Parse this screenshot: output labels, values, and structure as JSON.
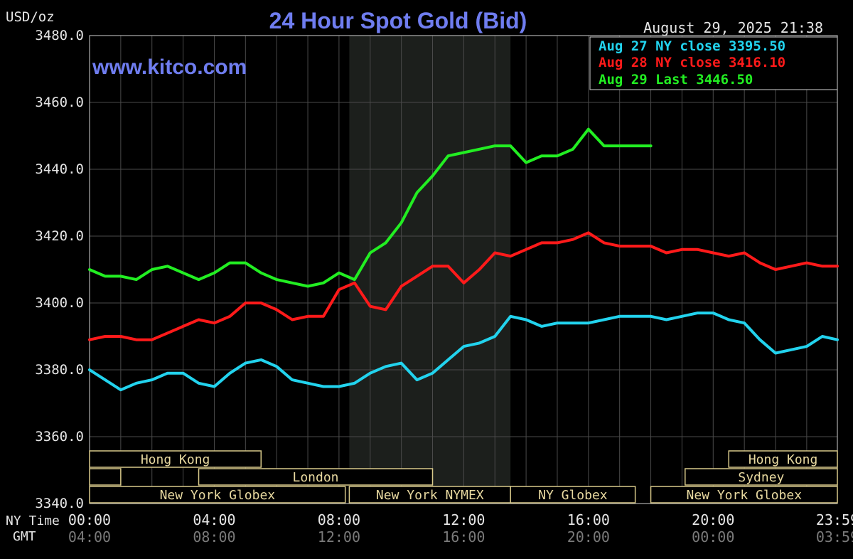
{
  "chart_data": {
    "type": "line",
    "title": "24 Hour Spot Gold (Bid)",
    "unit_label": "USD/oz",
    "timestamp": "August 29, 2025 21:38",
    "watermark": "www.kitco.com",
    "ylim": [
      3340,
      3480
    ],
    "y_ticks": [
      "3480.0",
      "3460.0",
      "3440.0",
      "3420.0",
      "3400.0",
      "3380.0",
      "3360.0",
      "3340.0"
    ],
    "y_tick_values": [
      3480,
      3460,
      3440,
      3420,
      3400,
      3380,
      3360,
      3340
    ],
    "x_axis_label": "NY Time",
    "x_axis_label2": "GMT",
    "x_ticks_ny": [
      "00:00",
      "04:00",
      "08:00",
      "12:00",
      "16:00",
      "20:00",
      "23:59"
    ],
    "x_ticks_gmt": [
      "04:00",
      "08:00",
      "12:00",
      "16:00",
      "20:00",
      "00:00",
      "03:59"
    ],
    "x_tick_hours": [
      0,
      4,
      8,
      12,
      16,
      20,
      23.983
    ],
    "x_range_hours": [
      0,
      23.983
    ],
    "grid": true,
    "legend_position": "top-right",
    "shaded_region_hours": [
      8.33,
      13.5
    ],
    "sessions": [
      {
        "label": "Hong Kong",
        "start": 0,
        "end": 5.5,
        "row": 0
      },
      {
        "label": "Hong Kong",
        "start": 20.5,
        "end": 23.983,
        "row": 0
      },
      {
        "label": "",
        "start": 0,
        "end": 1,
        "row": 1
      },
      {
        "label": "London",
        "start": 3.5,
        "end": 11,
        "row": 1
      },
      {
        "label": "Sydney",
        "start": 19.1,
        "end": 23.983,
        "row": 1
      },
      {
        "label": "New York Globex",
        "start": 0,
        "end": 8.2,
        "row": 2
      },
      {
        "label": "New York NYMEX",
        "start": 8.33,
        "end": 13.5,
        "row": 2
      },
      {
        "label": "NY Globex",
        "start": 13.5,
        "end": 17.5,
        "row": 2
      },
      {
        "label": "New York Globex",
        "start": 18,
        "end": 23.983,
        "row": 2
      }
    ],
    "series": [
      {
        "name": "Aug 27 NY close 3395.50",
        "color": "#22d3ee",
        "x": [
          0,
          0.5,
          1,
          1.5,
          2,
          2.5,
          3,
          3.5,
          4,
          4.5,
          5,
          5.5,
          6,
          6.5,
          7,
          7.5,
          8,
          8.5,
          9,
          9.5,
          10,
          10.5,
          11,
          11.5,
          12,
          12.5,
          13,
          13.5,
          14,
          14.5,
          15,
          15.5,
          16,
          16.5,
          17,
          17.5,
          18,
          18.5,
          19,
          19.5,
          20,
          20.5,
          21,
          21.5,
          22,
          22.5,
          23,
          23.5,
          23.983
        ],
        "values": [
          3380,
          3377,
          3374,
          3376,
          3377,
          3379,
          3379,
          3376,
          3375,
          3379,
          3382,
          3383,
          3381,
          3377,
          3376,
          3375,
          3375,
          3376,
          3379,
          3381,
          3382,
          3377,
          3379,
          3383,
          3387,
          3388,
          3390,
          3396,
          3395,
          3393,
          3394,
          3394,
          3394,
          3395,
          3396,
          3396,
          3396,
          3395,
          3396,
          3397,
          3397,
          3395,
          3394,
          3389,
          3385,
          3386,
          3387,
          3390,
          3389
        ]
      },
      {
        "name": "Aug 28 NY close 3416.10",
        "color": "#ff1a1a",
        "x": [
          0,
          0.5,
          1,
          1.5,
          2,
          2.5,
          3,
          3.5,
          4,
          4.5,
          5,
          5.5,
          6,
          6.5,
          7,
          7.5,
          8,
          8.5,
          9,
          9.5,
          10,
          10.5,
          11,
          11.5,
          12,
          12.5,
          13,
          13.5,
          14,
          14.5,
          15,
          15.5,
          16,
          16.5,
          17,
          17.5,
          18,
          18.5,
          19,
          19.5,
          20,
          20.5,
          21,
          21.5,
          22,
          22.5,
          23,
          23.5,
          23.983
        ],
        "values": [
          3389,
          3390,
          3390,
          3389,
          3389,
          3391,
          3393,
          3395,
          3394,
          3396,
          3400,
          3400,
          3398,
          3395,
          3396,
          3396,
          3404,
          3406,
          3399,
          3398,
          3405,
          3408,
          3411,
          3411,
          3406,
          3410,
          3415,
          3414,
          3416,
          3418,
          3418,
          3419,
          3421,
          3418,
          3417,
          3417,
          3417,
          3415,
          3416,
          3416,
          3415,
          3414,
          3415,
          3412,
          3410,
          3411,
          3412,
          3411,
          3411
        ]
      },
      {
        "name": "Aug 29 Last 3446.50",
        "color": "#22ee22",
        "x": [
          0,
          0.5,
          1,
          1.5,
          2,
          2.5,
          3,
          3.5,
          4,
          4.5,
          5,
          5.5,
          6,
          6.5,
          7,
          7.5,
          8,
          8.5,
          9,
          9.5,
          10,
          10.5,
          11,
          11.5,
          12,
          12.5,
          13,
          13.5,
          14,
          14.5,
          15,
          15.5,
          16,
          16.5,
          17,
          17.5,
          18
        ],
        "values": [
          3410,
          3408,
          3408,
          3407,
          3410,
          3411,
          3409,
          3407,
          3409,
          3412,
          3412,
          3409,
          3407,
          3406,
          3405,
          3406,
          3409,
          3407,
          3415,
          3418,
          3424,
          3433,
          3438,
          3444,
          3445,
          3446,
          3447,
          3447,
          3442,
          3444,
          3444,
          3446,
          3452,
          3447,
          3447,
          3447,
          3447
        ]
      }
    ]
  }
}
